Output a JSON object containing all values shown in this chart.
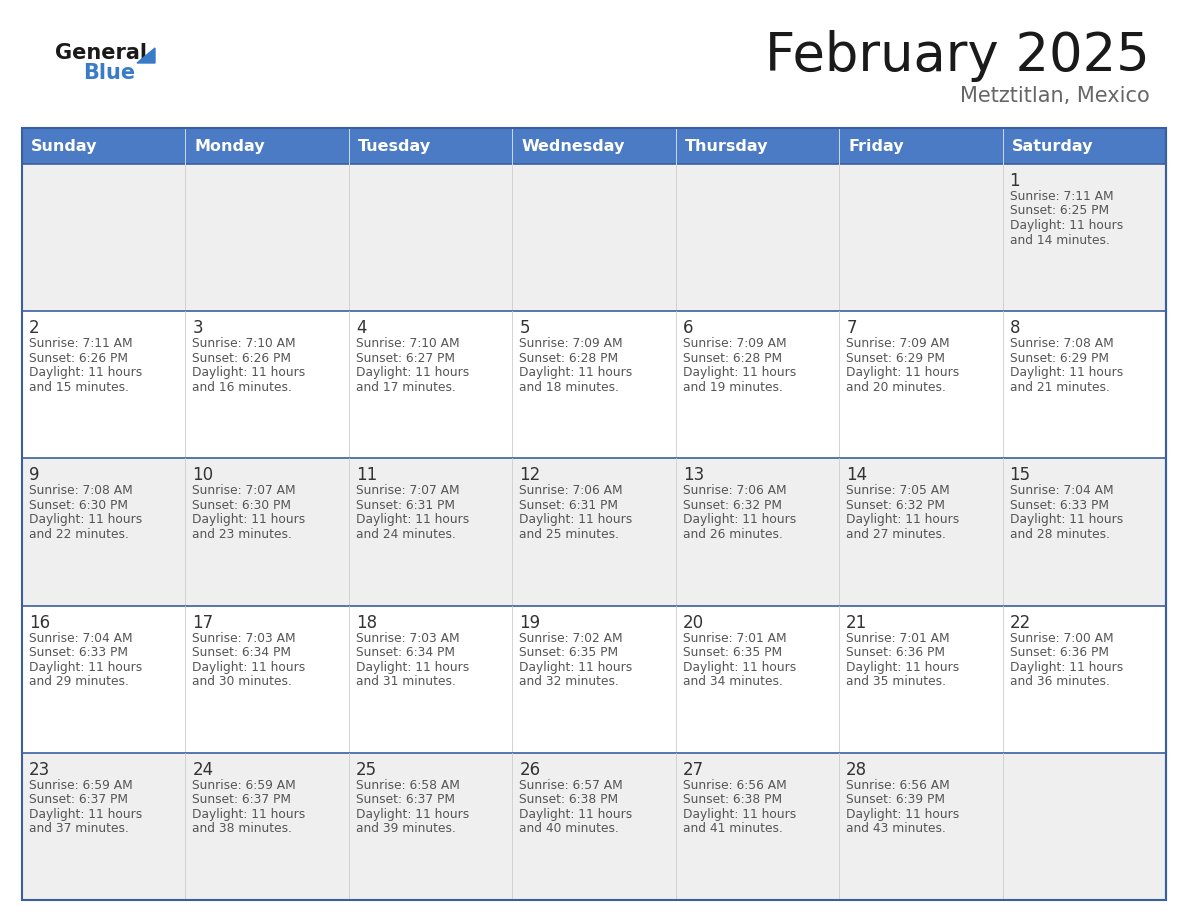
{
  "title": "February 2025",
  "subtitle": "Metztitlan, Mexico",
  "days_of_week": [
    "Sunday",
    "Monday",
    "Tuesday",
    "Wednesday",
    "Thursday",
    "Friday",
    "Saturday"
  ],
  "header_bg": "#4A7BC4",
  "header_text_color": "#FFFFFF",
  "cell_bg_light": "#EFEFEF",
  "cell_bg_white": "#FFFFFF",
  "cell_border_color": "#3A5FA0",
  "cell_inner_border": "#CCCCCC",
  "day_number_color": "#333333",
  "info_text_color": "#555555",
  "title_color": "#1a1a1a",
  "subtitle_color": "#666666",
  "logo_general_color": "#1a1a1a",
  "logo_blue_color": "#3A7BC8",
  "calendar_data": [
    [
      null,
      null,
      null,
      null,
      null,
      null,
      {
        "day": 1,
        "sunrise": "7:11 AM",
        "sunset": "6:25 PM",
        "daylight": "11 hours and 14 minutes."
      }
    ],
    [
      {
        "day": 2,
        "sunrise": "7:11 AM",
        "sunset": "6:26 PM",
        "daylight": "11 hours and 15 minutes."
      },
      {
        "day": 3,
        "sunrise": "7:10 AM",
        "sunset": "6:26 PM",
        "daylight": "11 hours and 16 minutes."
      },
      {
        "day": 4,
        "sunrise": "7:10 AM",
        "sunset": "6:27 PM",
        "daylight": "11 hours and 17 minutes."
      },
      {
        "day": 5,
        "sunrise": "7:09 AM",
        "sunset": "6:28 PM",
        "daylight": "11 hours and 18 minutes."
      },
      {
        "day": 6,
        "sunrise": "7:09 AM",
        "sunset": "6:28 PM",
        "daylight": "11 hours and 19 minutes."
      },
      {
        "day": 7,
        "sunrise": "7:09 AM",
        "sunset": "6:29 PM",
        "daylight": "11 hours and 20 minutes."
      },
      {
        "day": 8,
        "sunrise": "7:08 AM",
        "sunset": "6:29 PM",
        "daylight": "11 hours and 21 minutes."
      }
    ],
    [
      {
        "day": 9,
        "sunrise": "7:08 AM",
        "sunset": "6:30 PM",
        "daylight": "11 hours and 22 minutes."
      },
      {
        "day": 10,
        "sunrise": "7:07 AM",
        "sunset": "6:30 PM",
        "daylight": "11 hours and 23 minutes."
      },
      {
        "day": 11,
        "sunrise": "7:07 AM",
        "sunset": "6:31 PM",
        "daylight": "11 hours and 24 minutes."
      },
      {
        "day": 12,
        "sunrise": "7:06 AM",
        "sunset": "6:31 PM",
        "daylight": "11 hours and 25 minutes."
      },
      {
        "day": 13,
        "sunrise": "7:06 AM",
        "sunset": "6:32 PM",
        "daylight": "11 hours and 26 minutes."
      },
      {
        "day": 14,
        "sunrise": "7:05 AM",
        "sunset": "6:32 PM",
        "daylight": "11 hours and 27 minutes."
      },
      {
        "day": 15,
        "sunrise": "7:04 AM",
        "sunset": "6:33 PM",
        "daylight": "11 hours and 28 minutes."
      }
    ],
    [
      {
        "day": 16,
        "sunrise": "7:04 AM",
        "sunset": "6:33 PM",
        "daylight": "11 hours and 29 minutes."
      },
      {
        "day": 17,
        "sunrise": "7:03 AM",
        "sunset": "6:34 PM",
        "daylight": "11 hours and 30 minutes."
      },
      {
        "day": 18,
        "sunrise": "7:03 AM",
        "sunset": "6:34 PM",
        "daylight": "11 hours and 31 minutes."
      },
      {
        "day": 19,
        "sunrise": "7:02 AM",
        "sunset": "6:35 PM",
        "daylight": "11 hours and 32 minutes."
      },
      {
        "day": 20,
        "sunrise": "7:01 AM",
        "sunset": "6:35 PM",
        "daylight": "11 hours and 34 minutes."
      },
      {
        "day": 21,
        "sunrise": "7:01 AM",
        "sunset": "6:36 PM",
        "daylight": "11 hours and 35 minutes."
      },
      {
        "day": 22,
        "sunrise": "7:00 AM",
        "sunset": "6:36 PM",
        "daylight": "11 hours and 36 minutes."
      }
    ],
    [
      {
        "day": 23,
        "sunrise": "6:59 AM",
        "sunset": "6:37 PM",
        "daylight": "11 hours and 37 minutes."
      },
      {
        "day": 24,
        "sunrise": "6:59 AM",
        "sunset": "6:37 PM",
        "daylight": "11 hours and 38 minutes."
      },
      {
        "day": 25,
        "sunrise": "6:58 AM",
        "sunset": "6:37 PM",
        "daylight": "11 hours and 39 minutes."
      },
      {
        "day": 26,
        "sunrise": "6:57 AM",
        "sunset": "6:38 PM",
        "daylight": "11 hours and 40 minutes."
      },
      {
        "day": 27,
        "sunrise": "6:56 AM",
        "sunset": "6:38 PM",
        "daylight": "11 hours and 41 minutes."
      },
      {
        "day": 28,
        "sunrise": "6:56 AM",
        "sunset": "6:39 PM",
        "daylight": "11 hours and 43 minutes."
      },
      null
    ]
  ],
  "row_bg_pattern": [
    "#EFEFEF",
    "#FFFFFF",
    "#EFEFEF",
    "#FFFFFF",
    "#EFEFEF"
  ]
}
